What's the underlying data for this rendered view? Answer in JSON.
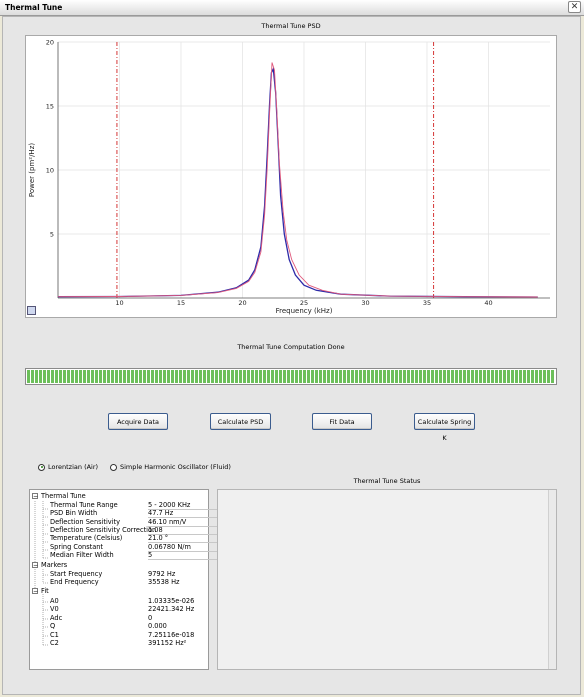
{
  "window": {
    "title": "Thermal Tune",
    "close_glyph": "✕"
  },
  "psd": {
    "title": "Thermal Tune PSD",
    "xlabel": "Frequency (kHz)",
    "ylabel": "Power (pm²/Hz)"
  },
  "chart_data": {
    "type": "line",
    "title": "Thermal Tune PSD",
    "xlabel": "Frequency (kHz)",
    "ylabel": "Power (pm²/Hz)",
    "xlim": [
      5,
      45
    ],
    "ylim": [
      0,
      20
    ],
    "xticks": [
      10,
      15,
      20,
      25,
      30,
      35,
      40
    ],
    "yticks": [
      5,
      10,
      15,
      20
    ],
    "grid": true,
    "markers": {
      "start_frequency": 9.792,
      "end_frequency": 35.538
    },
    "series": [
      {
        "color": "#2d2aa8",
        "x": [
          5.0,
          10.0,
          15.0,
          18.0,
          19.5,
          20.5,
          21.0,
          21.5,
          21.8,
          22.0,
          22.2,
          22.35,
          22.5,
          22.7,
          22.9,
          23.1,
          23.4,
          23.8,
          24.3,
          25.0,
          26.0,
          28.0,
          32.0,
          38.0,
          44.0
        ],
        "values": [
          0.1,
          0.12,
          0.2,
          0.45,
          0.8,
          1.4,
          2.2,
          4.0,
          7.2,
          11.0,
          15.2,
          17.6,
          17.9,
          16.0,
          12.0,
          8.0,
          5.0,
          3.0,
          1.8,
          1.0,
          0.6,
          0.3,
          0.15,
          0.1,
          0.08
        ]
      },
      {
        "color": "#e05a7d",
        "x": [
          5.0,
          10.0,
          15.0,
          18.0,
          19.5,
          20.5,
          21.0,
          21.5,
          21.8,
          22.0,
          22.2,
          22.4,
          22.6,
          22.8,
          23.0,
          23.3,
          23.6,
          24.0,
          24.6,
          25.4,
          26.5,
          28.0,
          32.0,
          38.0,
          44.0
        ],
        "values": [
          0.1,
          0.12,
          0.2,
          0.42,
          0.75,
          1.3,
          2.0,
          3.6,
          6.5,
          10.0,
          14.5,
          18.4,
          17.8,
          14.5,
          10.5,
          6.8,
          4.5,
          3.0,
          1.8,
          1.0,
          0.6,
          0.3,
          0.15,
          0.1,
          0.08
        ]
      }
    ]
  },
  "progress": {
    "label": "Thermal Tune Computation Done",
    "percent": 100
  },
  "buttons": {
    "acquire": "Acquire Data",
    "calc_psd": "Calculate PSD",
    "fit": "Fit Data",
    "spring": "Calculate Spring K"
  },
  "model": {
    "lorentzian": "Lorentzian (Air)",
    "sho": "Simple Harmonic Oscillator (Fluid)",
    "selected": "lorentzian"
  },
  "tree": {
    "thermal": {
      "label": "Thermal Tune",
      "rows": [
        {
          "label": "Thermal Tune Range",
          "value": "5 - 2000 KHz"
        },
        {
          "label": "PSD Bin Width",
          "value": "47.7 Hz"
        },
        {
          "label": "Deflection Sensitivity",
          "value": "46.10 nm/V"
        },
        {
          "label": "Deflection Sensitivity Correction",
          "value": "1.08"
        },
        {
          "label": "Temperature (Celsius)",
          "value": "21.0 °"
        },
        {
          "label": "Spring Constant",
          "value": "0.06780 N/m"
        },
        {
          "label": "Median Filter Width",
          "value": "5"
        }
      ]
    },
    "markers": {
      "label": "Markers",
      "rows": [
        {
          "label": "Start Frequency",
          "value": "9792 Hz"
        },
        {
          "label": "End Frequency",
          "value": "35538 Hz"
        }
      ]
    },
    "fit": {
      "label": "Fit",
      "rows": [
        {
          "label": "A0",
          "value": "1.03335e-026"
        },
        {
          "label": "V0",
          "value": "22421.342 Hz"
        },
        {
          "label": "Adc",
          "value": "0"
        },
        {
          "label": "Q",
          "value": "0.000"
        },
        {
          "label": "C1",
          "value": "7.25116e-018"
        },
        {
          "label": "C2",
          "value": "391152 Hz²"
        }
      ]
    },
    "collapse_glyph": "−"
  },
  "status": {
    "title": "Thermal Tune Status"
  }
}
